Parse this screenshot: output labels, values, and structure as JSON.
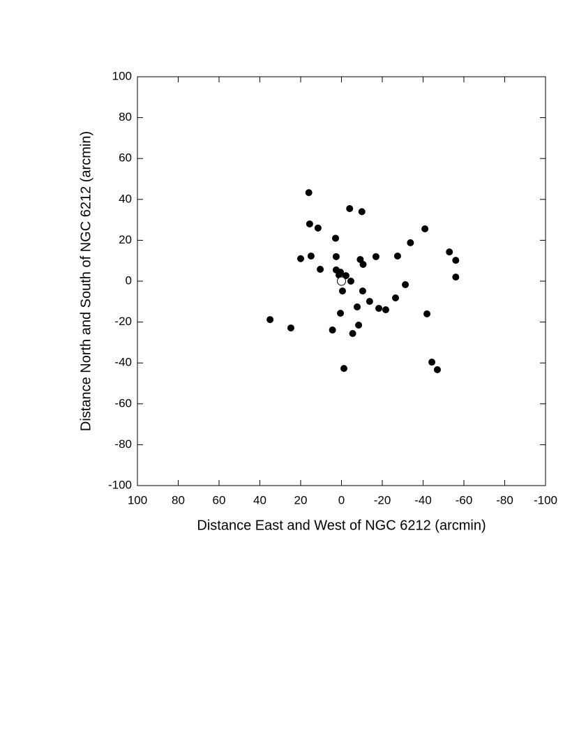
{
  "chart_data": {
    "type": "scatter",
    "x_label": "Distance East and West of NGC 6212 (arcmin)",
    "y_label": "Distance North and South of NGC 6212 (arcmin)",
    "xlim": [
      100,
      -100
    ],
    "ylim": [
      -100,
      100
    ],
    "xticks": [
      100,
      80,
      60,
      40,
      20,
      0,
      -20,
      -40,
      -60,
      -80,
      -100
    ],
    "yticks": [
      -100,
      -80,
      -60,
      -40,
      -20,
      0,
      20,
      40,
      60,
      80,
      100
    ],
    "grid": false,
    "series": [
      {
        "color": "#000000",
        "marker": "filled",
        "x": [
          16,
          -4,
          -10,
          15.6,
          11.5,
          -40.9,
          2.9,
          -33.8,
          -52.9,
          14.9,
          2.6,
          -16.9,
          -27.5,
          20,
          -56,
          -9.2,
          -10.6,
          10.4,
          2.6,
          0.5,
          1.2,
          -2.2,
          -56,
          -4.6,
          -31.3,
          -0.5,
          -10.4,
          -13.8,
          -7.7,
          -18.3,
          -21.7,
          -26.5,
          -41.9,
          0.5,
          35,
          24.8,
          -8.4,
          4.4,
          -5.5,
          -44.3,
          -47,
          -1.2
        ],
        "values": [
          43.3,
          35.5,
          34,
          28,
          26,
          25.6,
          21,
          18.8,
          14.3,
          12.3,
          12,
          12,
          12.3,
          11,
          10.2,
          10.6,
          8.2,
          5.8,
          5.5,
          4.4,
          3,
          2.7,
          2,
          0,
          -1.7,
          -4.8,
          -4.8,
          -9.9,
          -12.6,
          -13.3,
          -14,
          -8.2,
          -16,
          -15.7,
          -18.8,
          -22.9,
          -21.5,
          -23.9,
          -25.6,
          -39.6,
          -43.3,
          -42.7
        ]
      },
      {
        "color": "#000000",
        "marker": "open",
        "x": [
          0
        ],
        "values": [
          0
        ]
      }
    ]
  }
}
